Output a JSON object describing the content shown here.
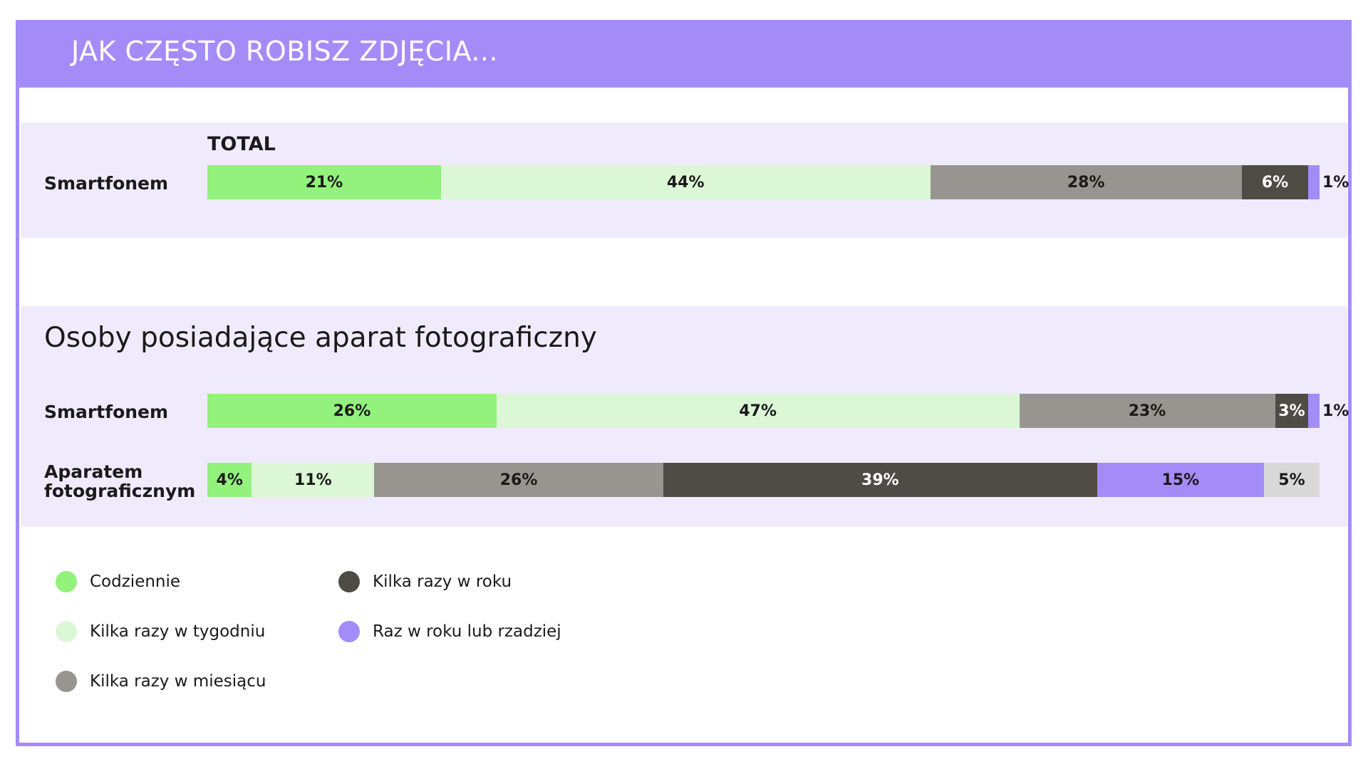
{
  "title": "JAK CZĘSTO ROBISZ ZDJĘCIA...",
  "colors": {
    "accent": "#a48cf8",
    "panel": "#efebfc",
    "daily": "#93f27c",
    "weekly": "#dcf7d6",
    "monthly": "#989590",
    "yearly": "#4f4b45",
    "rarely": "#a48cf8",
    "other": "#d8d8d8"
  },
  "sections": {
    "total_label": "TOTAL",
    "owners_subtitle": "Osoby posiadające aparat fotograficzny"
  },
  "chart_data": {
    "type": "bar",
    "orientation": "horizontal",
    "stacked": true,
    "normalized": true,
    "title": "JAK CZĘSTO ROBISZ ZDJĘCIA...",
    "legend_position": "bottom-left",
    "series_names": [
      "Codziennie",
      "Kilka razy w tygodniu",
      "Kilka razy w miesiącu",
      "Kilka razy w roku",
      "Raz w roku lub rzadziej",
      ""
    ],
    "groups": [
      {
        "group": "TOTAL",
        "rows": [
          {
            "label": "Smartfonem",
            "values": [
              21,
              44,
              28,
              6,
              1
            ]
          }
        ]
      },
      {
        "group": "Osoby posiadające aparat fotograficzny",
        "rows": [
          {
            "label": "Smartfonem",
            "values": [
              26,
              47,
              23,
              3,
              1
            ]
          },
          {
            "label": "Aparatem fotograficznym",
            "values": [
              4,
              11,
              26,
              39,
              15,
              5
            ]
          }
        ]
      }
    ],
    "value_labels": {
      "total_smartphone": [
        "21%",
        "44%",
        "28%",
        "6%",
        "1%"
      ],
      "owners_smartphone": [
        "26%",
        "47%",
        "23%",
        "3%",
        "1%"
      ],
      "owners_camera": [
        "4%",
        "11%",
        "26%",
        "39%",
        "15%",
        "5%"
      ]
    }
  },
  "legend": [
    {
      "label": "Codziennie",
      "color_key": "daily"
    },
    {
      "label": "Kilka razy w tygodniu",
      "color_key": "weekly"
    },
    {
      "label": "Kilka razy w miesiącu",
      "color_key": "monthly"
    },
    {
      "label": "Kilka razy w roku",
      "color_key": "yearly"
    },
    {
      "label": "Raz w roku lub rzadziej",
      "color_key": "rarely"
    }
  ],
  "rows_text": {
    "total_smartphone": "Smartfonem",
    "owners_smartphone": "Smartfonem",
    "owners_camera": "Aparatem fotograficznym"
  }
}
